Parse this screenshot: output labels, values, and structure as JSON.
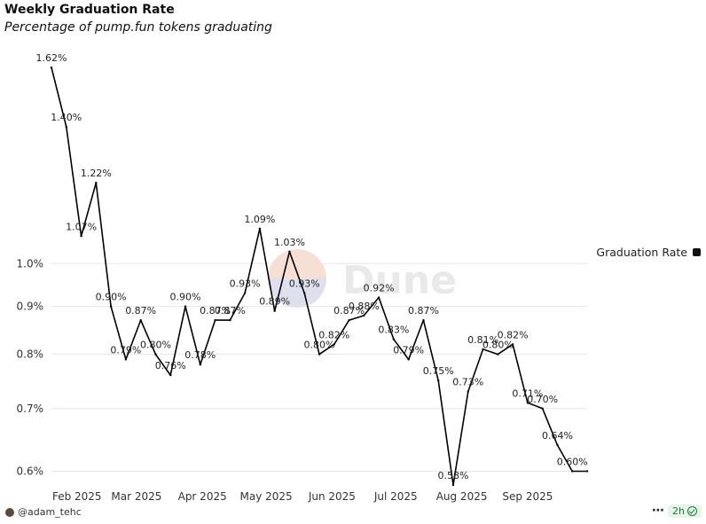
{
  "chart_data": {
    "type": "line",
    "title": "Weekly Graduation Rate",
    "subtitle": "Percentage of pump.fun tokens graduating",
    "xlabel": "",
    "ylabel": "",
    "y_scale": "log",
    "ylim": [
      0.58,
      1.66
    ],
    "grid": true,
    "legend_position": "right",
    "y_ticks": [
      {
        "value": 1.0,
        "label": "1.0%"
      },
      {
        "value": 0.9,
        "label": "0.9%"
      },
      {
        "value": 0.8,
        "label": "0.8%"
      },
      {
        "value": 0.7,
        "label": "0.7%"
      },
      {
        "value": 0.6,
        "label": "0.6%"
      }
    ],
    "x_ticks": [
      {
        "value": "2025-02-01",
        "label": "Feb 2025"
      },
      {
        "value": "2025-03-01",
        "label": "Mar 2025"
      },
      {
        "value": "2025-04-01",
        "label": "Apr 2025"
      },
      {
        "value": "2025-05-01",
        "label": "May 2025"
      },
      {
        "value": "2025-06-01",
        "label": "Jun 2025"
      },
      {
        "value": "2025-07-01",
        "label": "Jul 2025"
      },
      {
        "value": "2025-08-01",
        "label": "Aug 2025"
      },
      {
        "value": "2025-09-01",
        "label": "Sep 2025"
      }
    ],
    "x_range": [
      "2025-01-20",
      "2025-09-29"
    ],
    "series": [
      {
        "name": "Graduation Rate",
        "color": "#000000",
        "x": [
          "2025-01-20",
          "2025-01-27",
          "2025-02-03",
          "2025-02-10",
          "2025-02-17",
          "2025-02-24",
          "2025-03-03",
          "2025-03-10",
          "2025-03-17",
          "2025-03-24",
          "2025-03-31",
          "2025-04-07",
          "2025-04-14",
          "2025-04-21",
          "2025-04-28",
          "2025-05-05",
          "2025-05-12",
          "2025-05-19",
          "2025-05-26",
          "2025-06-02",
          "2025-06-09",
          "2025-06-16",
          "2025-06-23",
          "2025-06-30",
          "2025-07-07",
          "2025-07-14",
          "2025-07-21",
          "2025-07-28",
          "2025-08-04",
          "2025-08-11",
          "2025-08-18",
          "2025-08-25",
          "2025-09-01",
          "2025-09-08",
          "2025-09-15",
          "2025-09-22",
          "2025-09-29"
        ],
        "values": [
          1.62,
          1.4,
          1.07,
          1.22,
          0.9,
          0.79,
          0.87,
          0.8,
          0.76,
          0.9,
          0.78,
          0.87,
          0.87,
          0.93,
          1.09,
          0.89,
          1.03,
          0.93,
          0.8,
          0.82,
          0.87,
          0.88,
          0.92,
          0.83,
          0.79,
          0.87,
          0.75,
          0.58,
          0.73,
          0.81,
          0.8,
          0.82,
          0.71,
          0.7,
          0.64,
          0.6,
          0.6
        ],
        "labels": [
          "1.62%",
          "1.40%",
          "1.07%",
          "1.22%",
          "0.90%",
          "0.79%",
          "0.87%",
          "0.80%",
          "0.76%",
          "0.90%",
          "0.78%",
          "0.87%",
          "0.87%",
          "0.93%",
          "1.09%",
          "0.89%",
          "1.03%",
          "0.93%",
          "0.80%",
          "0.82%",
          "0.87%",
          "0.88%",
          "0.92%",
          "0.83%",
          "0.79%",
          "0.87%",
          "0.75%",
          "0.58%",
          "0.73%",
          "0.81%",
          "0.80%",
          "0.82%",
          "0.71%",
          "0.70%",
          "0.64%",
          "0.60%",
          ""
        ]
      }
    ]
  },
  "watermark": "Dune",
  "footer": {
    "author": "@adam_tehc",
    "more_icon": "ellipsis-icon",
    "age": "2h",
    "status_icon": "check-circle-icon"
  }
}
